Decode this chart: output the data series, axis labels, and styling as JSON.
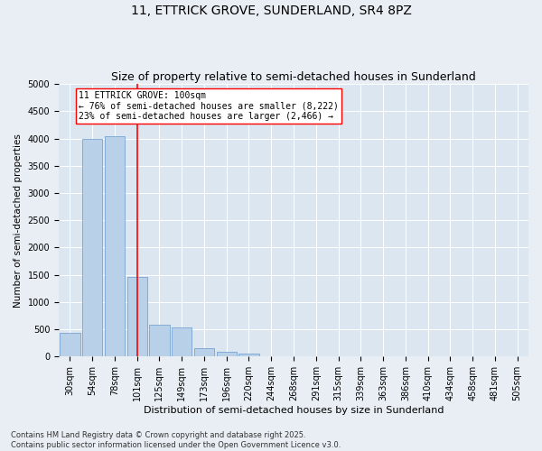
{
  "title": "11, ETTRICK GROVE, SUNDERLAND, SR4 8PZ",
  "subtitle": "Size of property relative to semi-detached houses in Sunderland",
  "xlabel": "Distribution of semi-detached houses by size in Sunderland",
  "ylabel": "Number of semi-detached properties",
  "categories": [
    "30sqm",
    "54sqm",
    "78sqm",
    "101sqm",
    "125sqm",
    "149sqm",
    "173sqm",
    "196sqm",
    "220sqm",
    "244sqm",
    "268sqm",
    "291sqm",
    "315sqm",
    "339sqm",
    "363sqm",
    "386sqm",
    "410sqm",
    "434sqm",
    "458sqm",
    "481sqm",
    "505sqm"
  ],
  "values": [
    430,
    4000,
    4050,
    1460,
    590,
    530,
    160,
    95,
    55,
    0,
    0,
    0,
    0,
    0,
    0,
    0,
    0,
    0,
    0,
    0,
    0
  ],
  "bar_color": "#b8d0e8",
  "bar_edge_color": "#6699cc",
  "marker_bin_index": 3,
  "marker_label": "11 ETTRICK GROVE: 100sqm",
  "annotation_line1": "← 76% of semi-detached houses are smaller (8,222)",
  "annotation_line2": "23% of semi-detached houses are larger (2,466) →",
  "marker_color": "red",
  "ylim": [
    0,
    5000
  ],
  "yticks": [
    0,
    500,
    1000,
    1500,
    2000,
    2500,
    3000,
    3500,
    4000,
    4500,
    5000
  ],
  "bg_color": "#e8eef4",
  "plot_bg_color": "#dce6f0",
  "footer": "Contains HM Land Registry data © Crown copyright and database right 2025.\nContains public sector information licensed under the Open Government Licence v3.0.",
  "title_fontsize": 10,
  "subtitle_fontsize": 9,
  "xlabel_fontsize": 8,
  "ylabel_fontsize": 7.5,
  "tick_fontsize": 7,
  "annotation_fontsize": 7,
  "footer_fontsize": 6
}
